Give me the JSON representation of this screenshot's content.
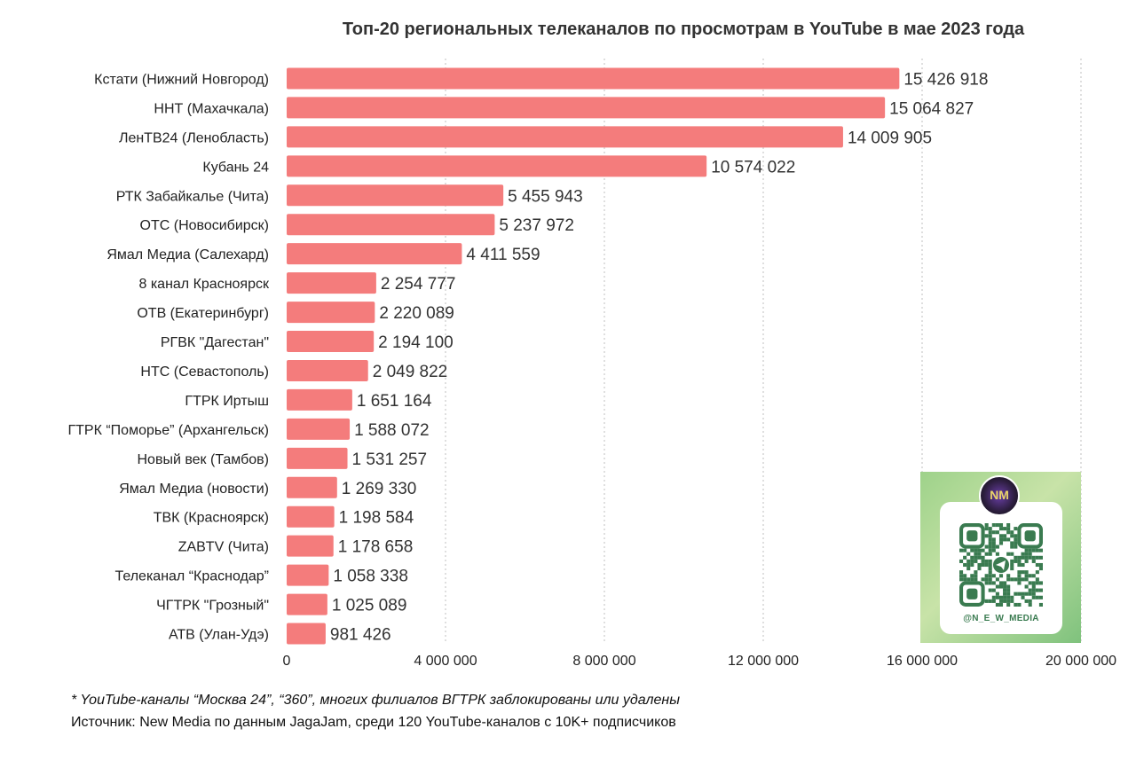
{
  "chart_data": {
    "type": "bar",
    "orientation": "horizontal",
    "title": "Топ-20 региональных телеканалов по просмотрам в YouTube в мае 2023 года",
    "categories": [
      "Кстати (Нижний Новгород)",
      "ННТ (Махачкала)",
      "ЛенТВ24 (Ленобласть)",
      "Кубань 24",
      "РТК Забайкалье (Чита)",
      "ОТС (Новосибирск)",
      "Ямал Медиа (Салехард)",
      "8 канал Красноярск",
      "ОТВ (Екатеринбург)",
      "РГВК \"Дагестан\"",
      "НТС (Севастополь)",
      "ГТРК Иртыш",
      "ГТРК “Поморье” (Архангельск)",
      "Новый век (Тамбов)",
      "Ямал Медиа (новости)",
      "ТВК (Красноярск)",
      "ZABTV (Чита)",
      "Телеканал “Краснодар”",
      "ЧГТРК \"Грозный\"",
      "АТВ (Улан-Удэ)"
    ],
    "values": [
      15426918,
      15064827,
      14009905,
      10574022,
      5455943,
      5237972,
      4411559,
      2254777,
      2220089,
      2194100,
      2049822,
      1651164,
      1588072,
      1531257,
      1269330,
      1198584,
      1178658,
      1058338,
      1025089,
      981426
    ],
    "value_labels": [
      "15 426 918",
      "15 064 827",
      "14 009 905",
      "10 574 022",
      "5 455 943",
      "5 237 972",
      "4 411 559",
      "2 254 777",
      "2 220 089",
      "2 194 100",
      "2 049 822",
      "1 651 164",
      "1 588 072",
      "1 531 257",
      "1 269 330",
      "1 198 584",
      "1 178 658",
      "1 058 338",
      "1 025 089",
      "981 426"
    ],
    "xlim": [
      0,
      20000000
    ],
    "x_ticks": [
      0,
      4000000,
      8000000,
      12000000,
      16000000,
      20000000
    ],
    "x_tick_labels": [
      "0",
      "4 000 000",
      "8 000 000",
      "12 000 000",
      "16 000 000",
      "20 000 000"
    ],
    "grid": "vertical dashed",
    "bar_color": "#f47c7c",
    "legend": "none"
  },
  "footnote": "* YouTube-каналы “Москва 24”, “360”, многих филиалов ВГТРК заблокированы или удалены",
  "source": "Источник: New Media по данным JagaJam, среди 120 YouTube-каналов с 10K+ подписчиков",
  "qr_card": {
    "handle": "@N_E_W_MEDIA",
    "accent": "#3a7b50",
    "avatar_text": "NM"
  }
}
